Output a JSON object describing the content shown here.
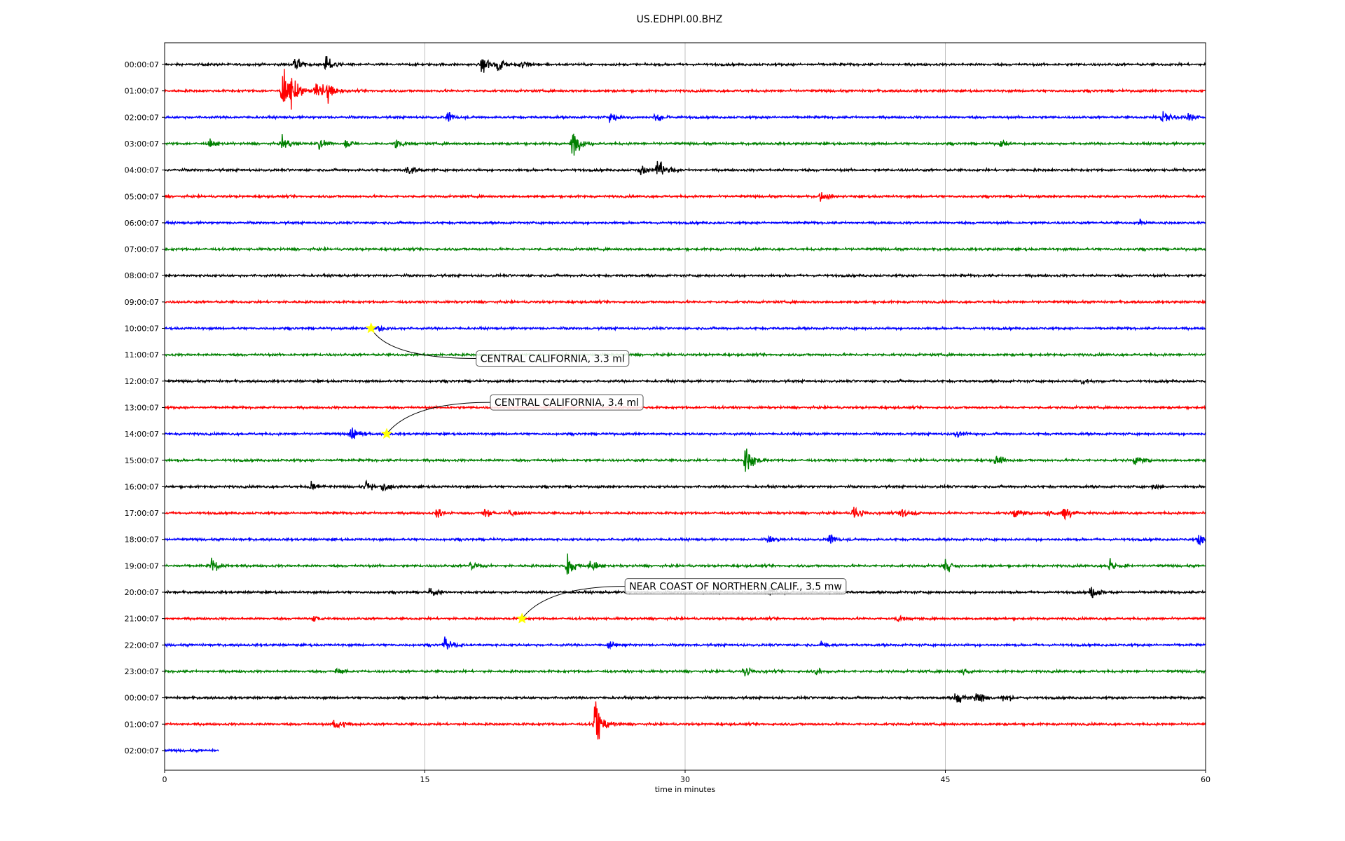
{
  "chart_data": {
    "type": "line",
    "title": "US.EDHPI.00.BHZ",
    "xlabel": "time in minutes",
    "ylabel": "",
    "xlim": [
      0,
      60
    ],
    "x_ticks": [
      "0",
      "15",
      "30",
      "45",
      "60"
    ],
    "x_tick_values": [
      0,
      15,
      30,
      45,
      60
    ],
    "grid": "vertical lines at x ticks",
    "trace_colors": [
      "#000000",
      "#ff0000",
      "#0000ff",
      "#008000"
    ],
    "rows": [
      {
        "label": "00:00:07",
        "color": "#000000",
        "end_minute": 60,
        "events": [
          [
            7.5,
            10
          ],
          [
            9.3,
            12
          ],
          [
            18.3,
            16
          ],
          [
            19.2,
            10
          ],
          [
            20.5,
            8
          ]
        ]
      },
      {
        "label": "01:00:07",
        "color": "#ff0000",
        "end_minute": 60,
        "events": [
          [
            6.8,
            30
          ],
          [
            7.3,
            22
          ],
          [
            8.7,
            22
          ],
          [
            9.4,
            12
          ]
        ]
      },
      {
        "label": "02:00:07",
        "color": "#0000ff",
        "end_minute": 60,
        "events": [
          [
            16.3,
            8
          ],
          [
            25.7,
            9
          ],
          [
            28.3,
            9
          ],
          [
            57.5,
            16
          ],
          [
            59.0,
            8
          ]
        ]
      },
      {
        "label": "03:00:07",
        "color": "#008000",
        "end_minute": 60,
        "events": [
          [
            2.6,
            6
          ],
          [
            6.8,
            10
          ],
          [
            8.8,
            9
          ],
          [
            10.4,
            6
          ],
          [
            13.3,
            9
          ],
          [
            23.5,
            18
          ],
          [
            48.2,
            6
          ]
        ]
      },
      {
        "label": "04:00:07",
        "color": "#000000",
        "end_minute": 60,
        "events": [
          [
            14.0,
            9
          ],
          [
            27.4,
            9
          ],
          [
            28.4,
            20
          ]
        ]
      },
      {
        "label": "05:00:07",
        "color": "#ff0000",
        "end_minute": 60,
        "events": [
          [
            37.8,
            8
          ]
        ]
      },
      {
        "label": "06:00:07",
        "color": "#0000ff",
        "end_minute": 60,
        "events": [
          [
            56.2,
            5
          ]
        ]
      },
      {
        "label": "07:00:07",
        "color": "#008000",
        "end_minute": 60,
        "events": []
      },
      {
        "label": "08:00:07",
        "color": "#000000",
        "end_minute": 60,
        "events": []
      },
      {
        "label": "09:00:07",
        "color": "#ff0000",
        "end_minute": 60,
        "events": []
      },
      {
        "label": "10:00:07",
        "color": "#0000ff",
        "end_minute": 60,
        "events": [
          [
            12.3,
            6
          ]
        ]
      },
      {
        "label": "11:00:07",
        "color": "#008000",
        "end_minute": 60,
        "events": []
      },
      {
        "label": "12:00:07",
        "color": "#000000",
        "end_minute": 60,
        "events": [
          [
            52.9,
            5
          ]
        ]
      },
      {
        "label": "13:00:07",
        "color": "#ff0000",
        "end_minute": 60,
        "events": []
      },
      {
        "label": "14:00:07",
        "color": "#0000ff",
        "end_minute": 60,
        "events": [
          [
            10.7,
            12
          ],
          [
            45.6,
            5
          ]
        ]
      },
      {
        "label": "15:00:07",
        "color": "#008000",
        "end_minute": 60,
        "events": [
          [
            33.5,
            20
          ],
          [
            47.9,
            7
          ],
          [
            55.9,
            7
          ]
        ]
      },
      {
        "label": "16:00:07",
        "color": "#000000",
        "end_minute": 60,
        "events": [
          [
            8.4,
            8
          ],
          [
            11.6,
            10
          ],
          [
            12.6,
            10
          ],
          [
            56.9,
            5
          ]
        ]
      },
      {
        "label": "17:00:07",
        "color": "#ff0000",
        "end_minute": 60,
        "events": [
          [
            15.7,
            8
          ],
          [
            18.4,
            8
          ],
          [
            19.9,
            6
          ],
          [
            39.7,
            12
          ],
          [
            42.5,
            10
          ],
          [
            48.9,
            8
          ],
          [
            50.9,
            7
          ],
          [
            51.8,
            10
          ]
        ]
      },
      {
        "label": "18:00:07",
        "color": "#0000ff",
        "end_minute": 60,
        "events": [
          [
            34.8,
            6
          ],
          [
            38.3,
            8
          ],
          [
            59.6,
            10
          ]
        ]
      },
      {
        "label": "19:00:07",
        "color": "#008000",
        "end_minute": 60,
        "events": [
          [
            2.7,
            10
          ],
          [
            17.6,
            7
          ],
          [
            23.2,
            16
          ],
          [
            24.5,
            9
          ],
          [
            45.0,
            10
          ],
          [
            54.5,
            12
          ]
        ]
      },
      {
        "label": "20:00:07",
        "color": "#000000",
        "end_minute": 60,
        "events": [
          [
            15.3,
            7
          ],
          [
            34.9,
            6
          ],
          [
            53.4,
            10
          ]
        ]
      },
      {
        "label": "21:00:07",
        "color": "#ff0000",
        "end_minute": 60,
        "events": [
          [
            8.6,
            6
          ],
          [
            42.2,
            6
          ]
        ]
      },
      {
        "label": "22:00:07",
        "color": "#0000ff",
        "end_minute": 60,
        "events": [
          [
            16.1,
            10
          ],
          [
            25.6,
            6
          ],
          [
            37.9,
            6
          ]
        ]
      },
      {
        "label": "23:00:07",
        "color": "#008000",
        "end_minute": 60,
        "events": [
          [
            9.9,
            5
          ],
          [
            33.4,
            10
          ],
          [
            37.6,
            6
          ],
          [
            46.0,
            7
          ]
        ]
      },
      {
        "label": "00:00:07",
        "color": "#000000",
        "end_minute": 60,
        "events": [
          [
            45.6,
            10
          ],
          [
            46.8,
            12
          ],
          [
            48.3,
            7
          ]
        ]
      },
      {
        "label": "01:00:07",
        "color": "#ff0000",
        "end_minute": 60,
        "events": [
          [
            9.8,
            12
          ],
          [
            24.8,
            30
          ]
        ]
      },
      {
        "label": "02:00:07",
        "color": "#0000ff",
        "end_minute": 3.1,
        "events": []
      }
    ],
    "annotations": [
      {
        "text": "CENTRAL CALIFORNIA, 3.3 ml",
        "row": 10,
        "minute": 11.9
      },
      {
        "text": "CENTRAL CALIFORNIA, 3.4 ml",
        "row": 14,
        "minute": 12.8
      },
      {
        "text": "NEAR COAST OF NORTHERN CALIF., 3.5 mw",
        "row": 21,
        "minute": 20.6
      }
    ]
  }
}
